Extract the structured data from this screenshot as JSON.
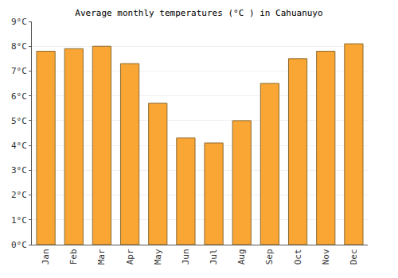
{
  "chart_data": {
    "type": "bar",
    "title": "Average monthly temperatures (°C ) in Cahuanuyo",
    "categories": [
      "Jan",
      "Feb",
      "Mar",
      "Apr",
      "May",
      "Jun",
      "Jul",
      "Aug",
      "Sep",
      "Oct",
      "Nov",
      "Dec"
    ],
    "values": [
      7.8,
      7.9,
      8.0,
      7.3,
      5.7,
      4.3,
      4.1,
      5.0,
      6.5,
      7.5,
      7.8,
      8.1
    ],
    "color": "#f9a635",
    "ylim": [
      0,
      9
    ],
    "yticks": [
      {
        "value": 0,
        "label": "0°C"
      },
      {
        "value": 1,
        "label": "1°C"
      },
      {
        "value": 2,
        "label": "2°C"
      },
      {
        "value": 3,
        "label": "3°C"
      },
      {
        "value": 4,
        "label": "4°C"
      },
      {
        "value": 5,
        "label": "5°C"
      },
      {
        "value": 6,
        "label": "6°C"
      },
      {
        "value": 7,
        "label": "7°C"
      },
      {
        "value": 8,
        "label": "8°C"
      },
      {
        "value": 9,
        "label": "9°C"
      }
    ],
    "grid": true
  }
}
